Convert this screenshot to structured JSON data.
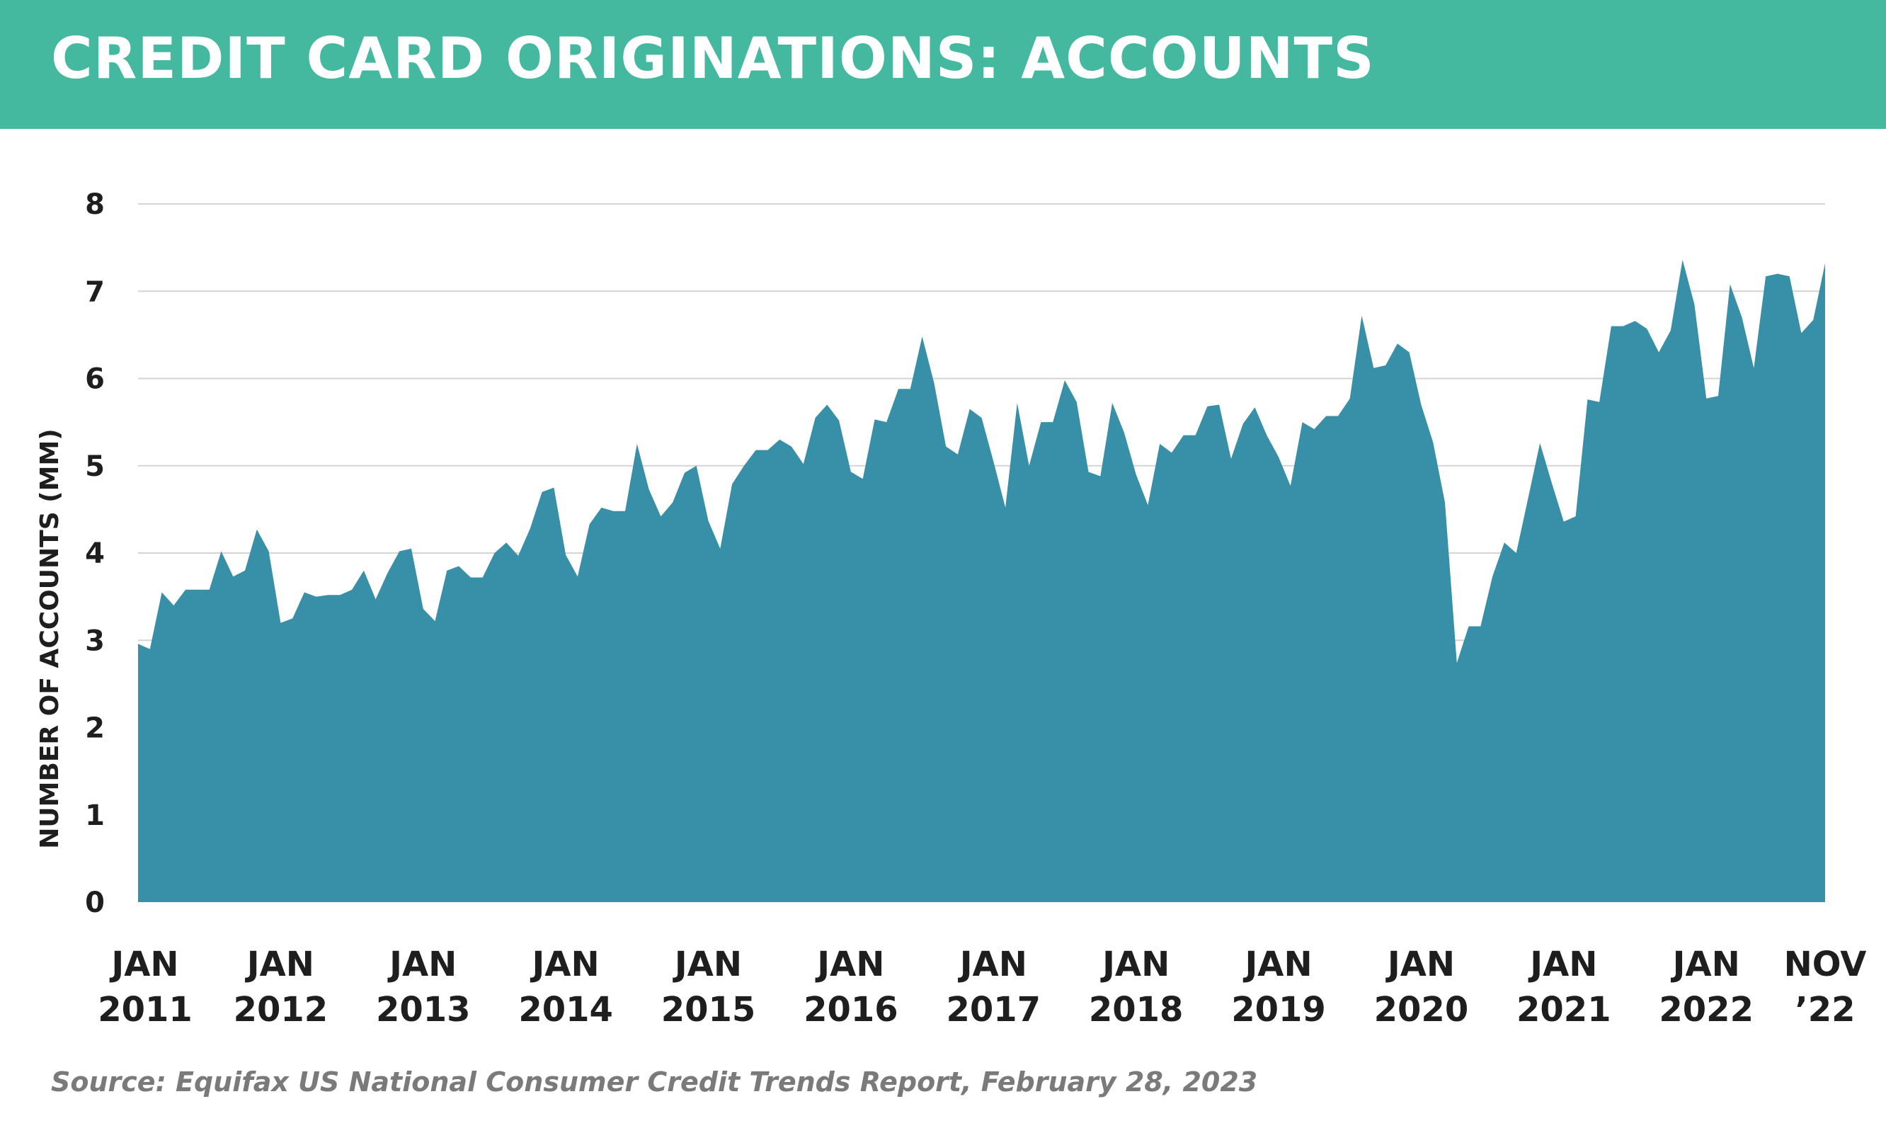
{
  "header": {
    "title": "CREDIT CARD ORIGINATIONS: ACCOUNTS"
  },
  "footer": {
    "source": "Source: Equifax US National Consumer Credit Trends Report, February 28, 2023"
  },
  "chart_data": {
    "type": "area",
    "title": "CREDIT CARD ORIGINATIONS: ACCOUNTS",
    "ylabel": "NUMBER OF ACCOUNTS (MM)",
    "xlabel": "",
    "ylim": [
      0,
      8
    ],
    "yticks": [
      0,
      1,
      2,
      3,
      4,
      5,
      6,
      7,
      8
    ],
    "grid": true,
    "legend": "none",
    "fill_color": "#388fa8",
    "grid_color": "#d4d4d4",
    "xticks": [
      {
        "month_index": 0,
        "line1": "JAN",
        "line2": "2011"
      },
      {
        "month_index": 12,
        "line1": "JAN",
        "line2": "2012"
      },
      {
        "month_index": 24,
        "line1": "JAN",
        "line2": "2013"
      },
      {
        "month_index": 36,
        "line1": "JAN",
        "line2": "2014"
      },
      {
        "month_index": 48,
        "line1": "JAN",
        "line2": "2015"
      },
      {
        "month_index": 60,
        "line1": "JAN",
        "line2": "2016"
      },
      {
        "month_index": 72,
        "line1": "JAN",
        "line2": "2017"
      },
      {
        "month_index": 84,
        "line1": "JAN",
        "line2": "2018"
      },
      {
        "month_index": 96,
        "line1": "JAN",
        "line2": "2019"
      },
      {
        "month_index": 108,
        "line1": "JAN",
        "line2": "2020"
      },
      {
        "month_index": 120,
        "line1": "JAN",
        "line2": "2021"
      },
      {
        "month_index": 132,
        "line1": "JAN",
        "line2": "2022"
      },
      {
        "month_index": 142,
        "line1": "NOV",
        "line2": "’22"
      }
    ],
    "series": [
      {
        "name": "",
        "start": "JAN 2011",
        "end": "NOV 2022",
        "values": [
          2.96,
          2.9,
          3.55,
          3.4,
          3.58,
          3.58,
          3.58,
          4.02,
          3.73,
          3.8,
          4.27,
          4.02,
          3.2,
          3.25,
          3.55,
          3.5,
          3.52,
          3.52,
          3.58,
          3.8,
          3.47,
          3.77,
          4.02,
          4.05,
          3.36,
          3.22,
          3.8,
          3.85,
          3.72,
          3.72,
          4.0,
          4.12,
          3.97,
          4.28,
          4.7,
          4.75,
          3.98,
          3.73,
          4.33,
          4.52,
          4.48,
          4.48,
          5.25,
          4.73,
          4.42,
          4.58,
          4.92,
          5.0,
          4.37,
          4.05,
          4.79,
          5.0,
          5.18,
          5.18,
          5.3,
          5.22,
          5.02,
          5.55,
          5.7,
          5.52,
          4.93,
          4.85,
          5.53,
          5.5,
          5.88,
          5.88,
          6.48,
          5.95,
          5.22,
          5.13,
          5.65,
          5.55,
          5.05,
          4.52,
          5.72,
          5.0,
          5.5,
          5.5,
          5.98,
          5.73,
          4.93,
          4.88,
          5.72,
          5.38,
          4.9,
          4.55,
          5.25,
          5.15,
          5.35,
          5.35,
          5.68,
          5.7,
          5.08,
          5.48,
          5.67,
          5.35,
          5.1,
          4.77,
          5.5,
          5.42,
          5.57,
          5.57,
          5.77,
          6.72,
          6.12,
          6.15,
          6.4,
          6.3,
          5.7,
          5.27,
          4.58,
          2.74,
          3.16,
          3.16,
          3.73,
          4.12,
          4.0,
          4.63,
          5.26,
          4.8,
          4.36,
          4.42,
          5.76,
          5.73,
          6.6,
          6.6,
          6.66,
          6.57,
          6.3,
          6.55,
          7.36,
          6.85,
          5.77,
          5.8,
          7.08,
          6.7,
          6.12,
          7.17,
          7.2,
          7.17,
          6.52,
          6.67,
          7.32
        ]
      }
    ]
  }
}
